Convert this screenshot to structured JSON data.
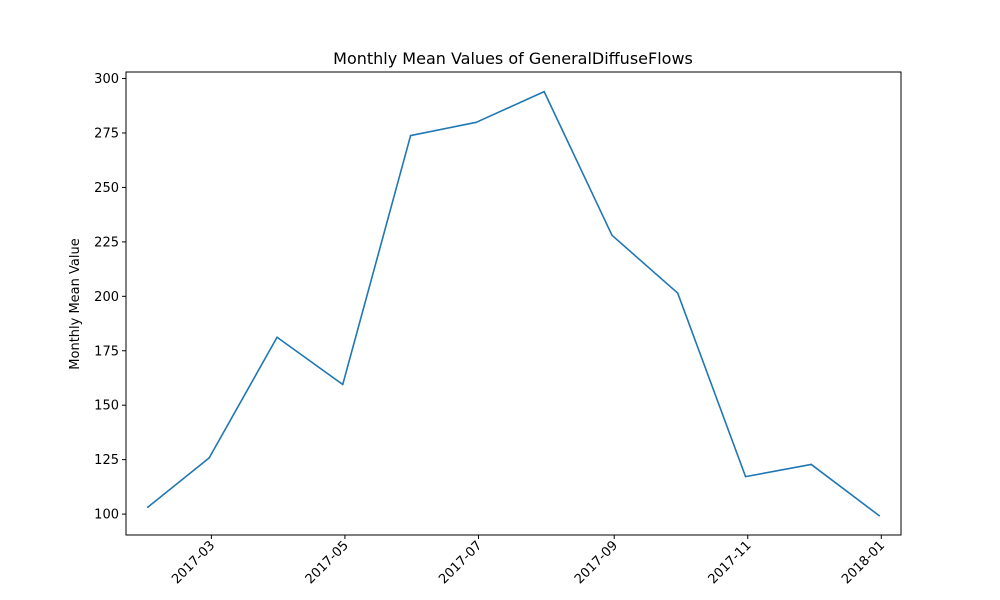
{
  "chart_data": {
    "type": "line",
    "title": "Monthly Mean Values of GeneralDiffuseFlows",
    "xlabel": "",
    "ylabel": "Monthly Mean Value",
    "x": [
      "2017-01-31",
      "2017-02-28",
      "2017-03-31",
      "2017-04-30",
      "2017-05-31",
      "2017-06-30",
      "2017-07-31",
      "2017-08-31",
      "2017-09-30",
      "2017-10-31",
      "2017-11-30",
      "2017-12-31"
    ],
    "series": [
      {
        "values": [
          103.2,
          125.8,
          181.2,
          159.5,
          273.8,
          279.9,
          294.0,
          228.0,
          201.5,
          117.2,
          122.8,
          99.3
        ],
        "color": "#1f77b4"
      }
    ],
    "xlim": [
      "2017-01-21",
      "2018-01-10"
    ],
    "ylim": [
      90.4,
      303.0
    ],
    "x_ticks": [
      "2017-03",
      "2017-05",
      "2017-07",
      "2017-09",
      "2017-11",
      "2018-01"
    ],
    "y_ticks": [
      100,
      125,
      150,
      175,
      200,
      225,
      250,
      275,
      300
    ],
    "grid": false,
    "legend": "none"
  }
}
